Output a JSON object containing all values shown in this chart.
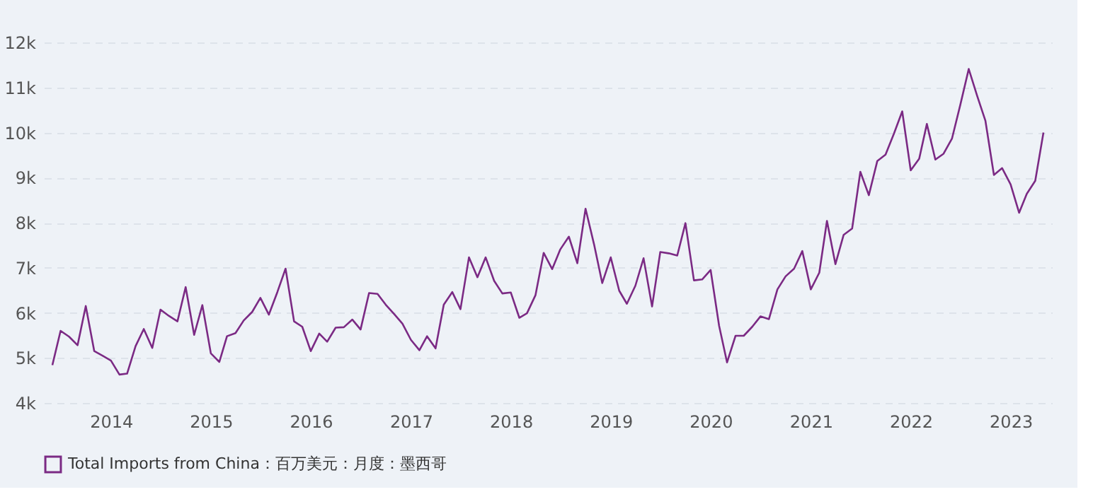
{
  "chart_data": {
    "type": "line",
    "xlim": [
      "2013-05",
      "2023-06"
    ],
    "xticks": [
      "2014",
      "2015",
      "2016",
      "2017",
      "2018",
      "2019",
      "2020",
      "2021",
      "2022",
      "2023"
    ],
    "ylim": [
      4000,
      12000
    ],
    "yticks": [
      {
        "value": 4000,
        "label": "4k"
      },
      {
        "value": 5000,
        "label": "5k"
      },
      {
        "value": 6000,
        "label": "6k"
      },
      {
        "value": 7000,
        "label": "7k"
      },
      {
        "value": 8000,
        "label": "8k"
      },
      {
        "value": 9000,
        "label": "9k"
      },
      {
        "value": 10000,
        "label": "10k"
      },
      {
        "value": 11000,
        "label": "11k"
      },
      {
        "value": 12000,
        "label": "12k"
      }
    ],
    "grid": "y",
    "legend": "bottom",
    "marker": "none",
    "line_style": "solid",
    "x": [
      "2013-06",
      "2013-07",
      "2013-08",
      "2013-09",
      "2013-10",
      "2013-11",
      "2013-12",
      "2014-01",
      "2014-02",
      "2014-03",
      "2014-04",
      "2014-05",
      "2014-06",
      "2014-07",
      "2014-08",
      "2014-09",
      "2014-10",
      "2014-11",
      "2014-12",
      "2015-01",
      "2015-02",
      "2015-03",
      "2015-04",
      "2015-05",
      "2015-06",
      "2015-07",
      "2015-08",
      "2015-09",
      "2015-10",
      "2015-11",
      "2015-12",
      "2016-01",
      "2016-02",
      "2016-03",
      "2016-04",
      "2016-05",
      "2016-06",
      "2016-07",
      "2016-08",
      "2016-09",
      "2016-10",
      "2016-11",
      "2016-12",
      "2017-01",
      "2017-02",
      "2017-03",
      "2017-04",
      "2017-05",
      "2017-06",
      "2017-07",
      "2017-08",
      "2017-09",
      "2017-10",
      "2017-11",
      "2017-12",
      "2018-01",
      "2018-02",
      "2018-03",
      "2018-04",
      "2018-05",
      "2018-06",
      "2018-07",
      "2018-08",
      "2018-09",
      "2018-10",
      "2018-11",
      "2018-12",
      "2019-01",
      "2019-02",
      "2019-03",
      "2019-04",
      "2019-05",
      "2019-06",
      "2019-07",
      "2019-08",
      "2019-09",
      "2019-10",
      "2019-11",
      "2019-12",
      "2020-01",
      "2020-02",
      "2020-03",
      "2020-04",
      "2020-05",
      "2020-06",
      "2020-07",
      "2020-08",
      "2020-09",
      "2020-10",
      "2020-11",
      "2020-12",
      "2021-01",
      "2021-02",
      "2021-03",
      "2021-04",
      "2021-05",
      "2021-06",
      "2021-07",
      "2021-08",
      "2021-09",
      "2021-10",
      "2021-11",
      "2021-12",
      "2022-01",
      "2022-02",
      "2022-03",
      "2022-04",
      "2022-05",
      "2022-06",
      "2022-07",
      "2022-08",
      "2022-09",
      "2022-10",
      "2022-11",
      "2022-12",
      "2023-01",
      "2023-02",
      "2023-03",
      "2023-04",
      "2023-05"
    ],
    "series": [
      {
        "name": "Total Imports from China：百万美元：月度：墨西哥",
        "color": "#7b2a84",
        "values": [
          4840,
          5600,
          5470,
          5280,
          6150,
          5150,
          5050,
          4940,
          4630,
          4650,
          5260,
          5640,
          5220,
          6070,
          5930,
          5810,
          6570,
          5510,
          6170,
          5100,
          4910,
          5480,
          5550,
          5830,
          6020,
          6330,
          5960,
          6460,
          6980,
          5810,
          5690,
          5150,
          5540,
          5360,
          5670,
          5680,
          5850,
          5630,
          6440,
          6420,
          6180,
          5970,
          5760,
          5400,
          5170,
          5480,
          5210,
          6180,
          6460,
          6080,
          7230,
          6790,
          7230,
          6710,
          6430,
          6450,
          5890,
          5990,
          6390,
          7330,
          6970,
          7410,
          7690,
          7100,
          8310,
          7520,
          6660,
          7230,
          6490,
          6200,
          6600,
          7210,
          6140,
          7350,
          7320,
          7270,
          7990,
          6720,
          6740,
          6950,
          5710,
          4900,
          5490,
          5490,
          5690,
          5920,
          5860,
          6520,
          6810,
          6980,
          7370,
          6520,
          6890,
          8040,
          7080,
          7730,
          7870,
          9130,
          8610,
          9370,
          9510,
          9980,
          10470,
          9160,
          9420,
          10190,
          9400,
          9530,
          9870,
          10610,
          11410,
          10810,
          10260,
          9060,
          9210,
          8850,
          8220,
          8640,
          8930,
          10000
        ]
      }
    ]
  }
}
